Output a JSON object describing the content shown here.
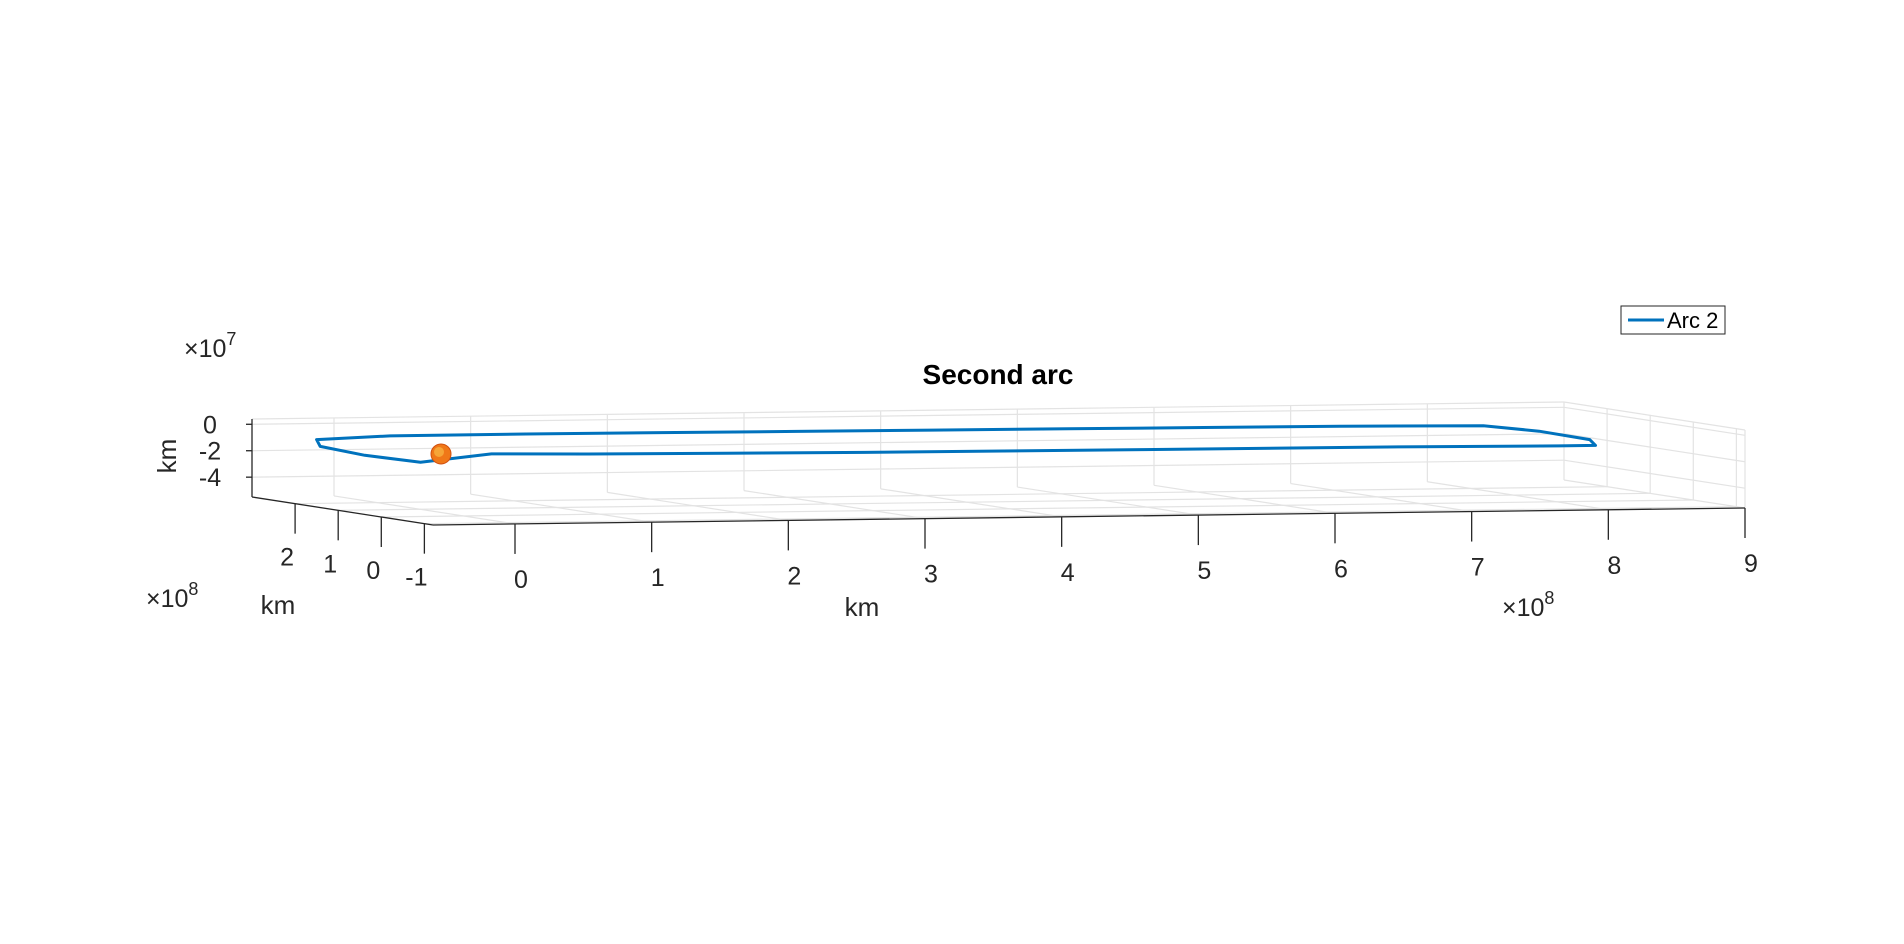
{
  "chart_data": {
    "type": "line",
    "title": "Second arc",
    "xlabel": "km",
    "ylabel": "km",
    "zlabel": "km",
    "x_exponent": "×10",
    "x_exponent_power": "8",
    "y_exponent": "×10",
    "y_exponent_power": "8",
    "z_exponent": "×10",
    "z_exponent_power": "7",
    "x_ticks": [
      0,
      1,
      2,
      3,
      4,
      5,
      6,
      7,
      8,
      9
    ],
    "y_ticks": [
      -1,
      0,
      1,
      2
    ],
    "z_ticks": [
      0,
      -2,
      -4
    ],
    "xlim": [
      -0.6,
      9
    ],
    "ylim": [
      -1.2,
      3
    ],
    "zlim": [
      -5.5,
      0.4
    ],
    "grid": true,
    "legend": {
      "placement": "top-right",
      "entries": [
        "Arc 2"
      ]
    },
    "series": [
      {
        "name": "Arc 2",
        "color": "#0072BD",
        "x": [
          -0.25,
          -0.5,
          -0.7,
          -0.6,
          0,
          1,
          2,
          3,
          4,
          5,
          6,
          7,
          8,
          8.25,
          8.4,
          8.3,
          8.0,
          7,
          6,
          5,
          4,
          3,
          2,
          1,
          0.3,
          -0.25
        ],
        "y": [
          0.2,
          0.7,
          1.1,
          1.5,
          1.7,
          1.72,
          1.75,
          1.77,
          1.8,
          1.82,
          1.85,
          1.87,
          1.7,
          1.2,
          0.5,
          0.05,
          -0.05,
          0.0,
          0.05,
          0.1,
          0.15,
          0.2,
          0.25,
          0.3,
          0.3,
          0.2
        ],
        "z": [
          -1.5,
          -1.2,
          -0.7,
          -0.4,
          -0.3,
          -0.3,
          -0.35,
          -0.4,
          -0.45,
          -0.5,
          -0.55,
          -0.6,
          -0.6,
          -0.8,
          -1.1,
          -1.3,
          -1.25,
          -1.2,
          -1.2,
          -1.2,
          -1.2,
          -1.2,
          -1.15,
          -1.1,
          -1.0,
          -1.5
        ]
      }
    ],
    "markers": [
      {
        "name": "sun",
        "x": -0.1,
        "y": 0.2,
        "z": -0.9,
        "color": "#f07818"
      }
    ]
  }
}
